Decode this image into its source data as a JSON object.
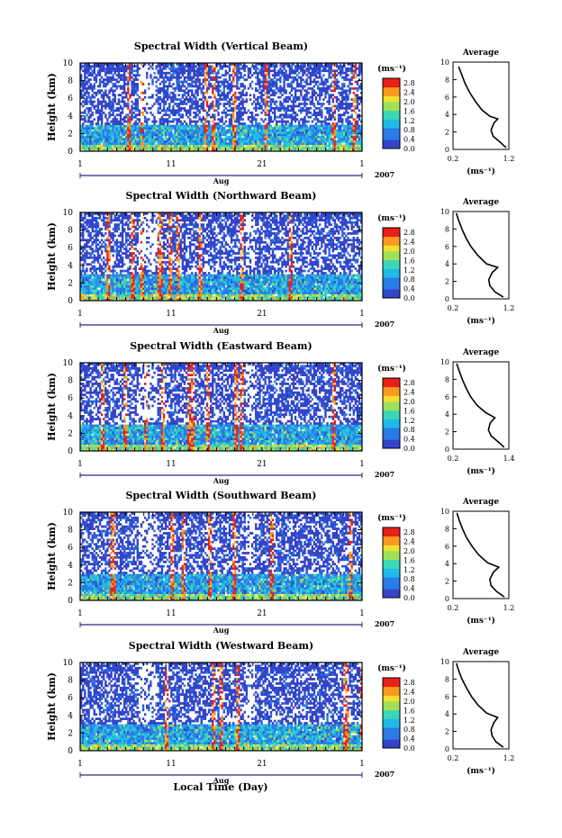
{
  "figure": {
    "month_label": "Aug",
    "year_label": "2007",
    "time_axis_label": "Local Time (Day)",
    "height_label": "Height (km)",
    "unit_label": "(ms⁻¹)",
    "average_title": "Average",
    "average_xlabel": "(ms⁻¹)"
  },
  "chart_data": [
    {
      "type": "heatmap",
      "title": "Spectral Width (Vertical Beam)",
      "x_ticks": [
        "1",
        "11",
        "21",
        "1"
      ],
      "x_range_days": [
        1,
        32
      ],
      "y_ticks": [
        "0",
        "2",
        "4",
        "6",
        "8",
        "10"
      ],
      "ylim": [
        0,
        10
      ],
      "colorbar_ticks": [
        "0.0",
        "0.4",
        "0.8",
        "1.2",
        "1.6",
        "2.0",
        "2.4",
        "2.8"
      ],
      "colorbar_range": [
        0,
        3.0
      ],
      "average_profile": {
        "xlim": [
          0.2,
          1.2
        ],
        "x_ticks": [
          "0.2",
          "1.2"
        ],
        "points": [
          [
            1.15,
            0.2
          ],
          [
            1.05,
            0.8
          ],
          [
            0.92,
            1.5
          ],
          [
            0.88,
            2.2
          ],
          [
            0.93,
            3.0
          ],
          [
            1.0,
            3.5
          ],
          [
            0.86,
            3.8
          ],
          [
            0.72,
            4.5
          ],
          [
            0.6,
            5.5
          ],
          [
            0.5,
            6.5
          ],
          [
            0.42,
            7.5
          ],
          [
            0.36,
            8.5
          ],
          [
            0.3,
            9.5
          ]
        ]
      }
    },
    {
      "type": "heatmap",
      "title": "Spectral Width (Northward Beam)",
      "x_ticks": [
        "1",
        "11",
        "21",
        "1"
      ],
      "x_range_days": [
        1,
        32
      ],
      "y_ticks": [
        "0",
        "2",
        "4",
        "6",
        "8",
        "10"
      ],
      "ylim": [
        0,
        10
      ],
      "colorbar_ticks": [
        "0.0",
        "0.4",
        "0.8",
        "1.2",
        "1.6",
        "2.0",
        "2.4",
        "2.8"
      ],
      "colorbar_range": [
        0,
        3.0
      ],
      "average_profile": {
        "xlim": [
          0.2,
          1.2
        ],
        "x_ticks": [
          "0.2",
          "1.2"
        ],
        "points": [
          [
            1.1,
            0.2
          ],
          [
            0.95,
            0.8
          ],
          [
            0.86,
            1.5
          ],
          [
            0.84,
            2.2
          ],
          [
            0.9,
            3.0
          ],
          [
            1.0,
            3.6
          ],
          [
            0.8,
            4.0
          ],
          [
            0.64,
            5.0
          ],
          [
            0.52,
            6.0
          ],
          [
            0.43,
            7.0
          ],
          [
            0.36,
            8.0
          ],
          [
            0.3,
            9.0
          ],
          [
            0.26,
            9.8
          ]
        ]
      }
    },
    {
      "type": "heatmap",
      "title": "Spectral Width (Eastward Beam)",
      "x_ticks": [
        "1",
        "11",
        "21",
        "1"
      ],
      "x_range_days": [
        1,
        32
      ],
      "y_ticks": [
        "0",
        "2",
        "4",
        "6",
        "8",
        "10"
      ],
      "ylim": [
        0,
        10
      ],
      "colorbar_ticks": [
        "0.0",
        "0.4",
        "0.8",
        "1.2",
        "1.6",
        "2.0",
        "2.4",
        "2.8"
      ],
      "colorbar_range": [
        0,
        3.0
      ],
      "average_profile": {
        "xlim": [
          0.2,
          1.4
        ],
        "x_ticks": [
          "0.2",
          "1.4"
        ],
        "points": [
          [
            1.3,
            0.2
          ],
          [
            1.18,
            0.8
          ],
          [
            1.02,
            1.5
          ],
          [
            0.96,
            2.2
          ],
          [
            1.0,
            3.0
          ],
          [
            1.1,
            3.6
          ],
          [
            0.9,
            4.2
          ],
          [
            0.72,
            5.0
          ],
          [
            0.58,
            6.0
          ],
          [
            0.48,
            7.0
          ],
          [
            0.4,
            8.0
          ],
          [
            0.33,
            9.0
          ],
          [
            0.28,
            9.8
          ]
        ]
      }
    },
    {
      "type": "heatmap",
      "title": "Spectral Width (Southward Beam)",
      "x_ticks": [
        "1",
        "11",
        "21",
        "1"
      ],
      "x_range_days": [
        1,
        32
      ],
      "y_ticks": [
        "0",
        "2",
        "4",
        "6",
        "8",
        "10"
      ],
      "ylim": [
        0,
        10
      ],
      "colorbar_ticks": [
        "0.0",
        "0.4",
        "0.8",
        "1.2",
        "1.6",
        "2.0",
        "2.4",
        "2.8"
      ],
      "colorbar_range": [
        0,
        3.0
      ],
      "average_profile": {
        "xlim": [
          0.2,
          1.2
        ],
        "x_ticks": [
          "0.2",
          "1.2"
        ],
        "points": [
          [
            1.12,
            0.2
          ],
          [
            0.98,
            0.8
          ],
          [
            0.88,
            1.5
          ],
          [
            0.86,
            2.2
          ],
          [
            0.92,
            3.0
          ],
          [
            1.02,
            3.6
          ],
          [
            0.82,
            4.1
          ],
          [
            0.66,
            5.0
          ],
          [
            0.54,
            6.0
          ],
          [
            0.44,
            7.0
          ],
          [
            0.37,
            8.0
          ],
          [
            0.31,
            9.0
          ],
          [
            0.27,
            9.8
          ]
        ]
      }
    },
    {
      "type": "heatmap",
      "title": "Spectral Width (Westward Beam)",
      "x_ticks": [
        "1",
        "11",
        "21",
        "1"
      ],
      "x_range_days": [
        1,
        32
      ],
      "y_ticks": [
        "0",
        "2",
        "4",
        "6",
        "8",
        "10"
      ],
      "ylim": [
        0,
        10
      ],
      "colorbar_ticks": [
        "0.0",
        "0.4",
        "0.8",
        "1.2",
        "1.6",
        "2.0",
        "2.4",
        "2.8"
      ],
      "colorbar_range": [
        0,
        3.0
      ],
      "average_profile": {
        "xlim": [
          0.2,
          1.2
        ],
        "x_ticks": [
          "0.2",
          "1.2"
        ],
        "points": [
          [
            1.1,
            0.2
          ],
          [
            0.97,
            0.8
          ],
          [
            0.9,
            1.5
          ],
          [
            0.88,
            2.2
          ],
          [
            0.93,
            3.0
          ],
          [
            1.0,
            3.6
          ],
          [
            0.8,
            4.1
          ],
          [
            0.65,
            5.0
          ],
          [
            0.53,
            6.0
          ],
          [
            0.44,
            7.0
          ],
          [
            0.36,
            8.0
          ],
          [
            0.3,
            9.0
          ],
          [
            0.26,
            9.8
          ]
        ]
      }
    }
  ]
}
